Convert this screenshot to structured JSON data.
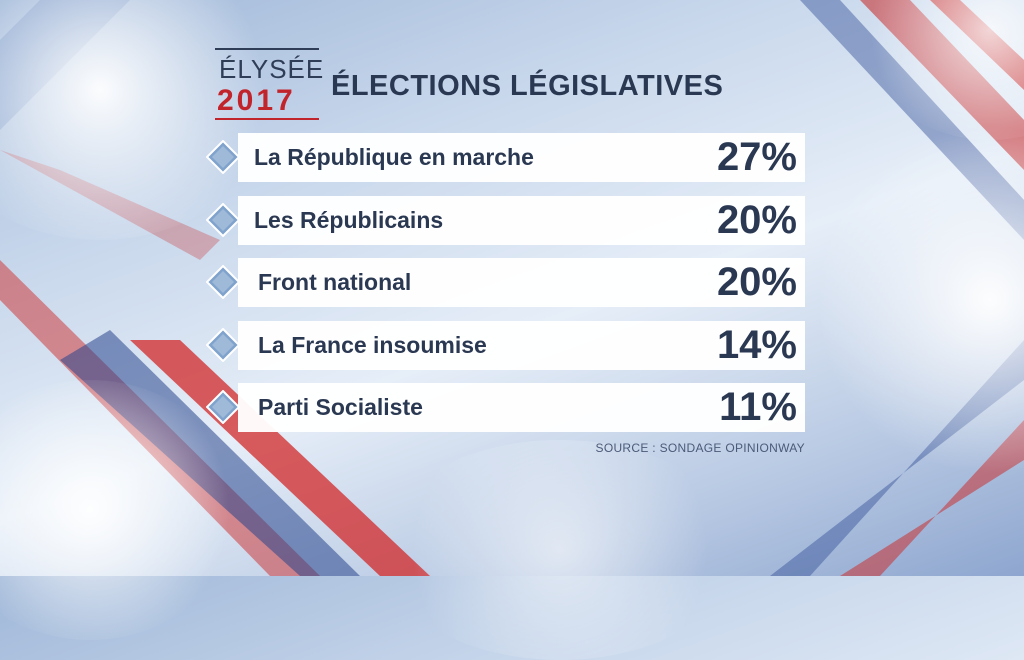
{
  "logo": {
    "line1": "ÉLYSÉE",
    "line2": "2017"
  },
  "title": "ÉLECTIONS LÉGISLATIVES",
  "chart_data": {
    "type": "table",
    "title": "ÉLECTIONS LÉGISLATIVES",
    "categories": [
      "La République en marche",
      "Les Républicains",
      "Front national",
      "La France insoumise",
      "Parti Socialiste"
    ],
    "values": [
      27,
      20,
      20,
      14,
      11
    ],
    "value_labels": [
      "27%",
      "20%",
      "20%",
      "14%",
      "11%"
    ],
    "unit": "%"
  },
  "source": "SOURCE : SONDAGE OPINIONWAY",
  "colors": {
    "accent_red": "#c2242b",
    "text_navy": "#2a3852",
    "bullet_blue": "#7fa3cc"
  },
  "icons": {
    "bullet": "diamond-icon"
  }
}
